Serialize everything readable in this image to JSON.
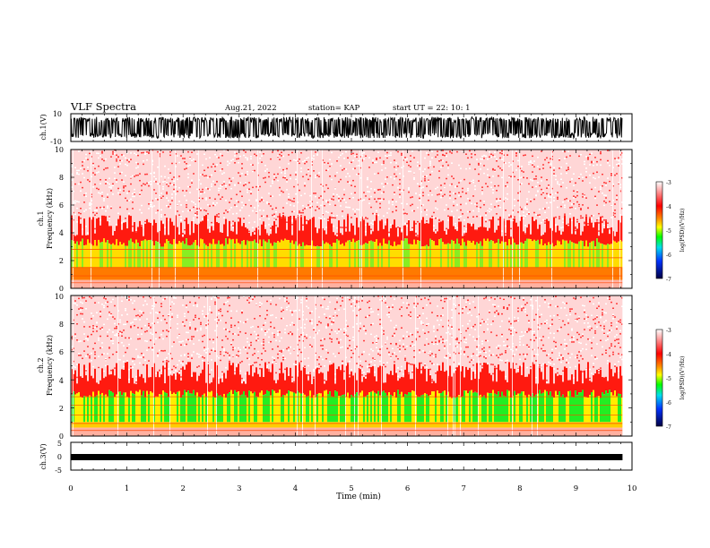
{
  "header": {
    "title": "VLF Spectra",
    "date": "Aug.21, 2022",
    "station": "station= KAP",
    "start": "start UT =  22: 10: 1"
  },
  "chart_data": [
    {
      "type": "line",
      "panel": "ch1-waveform",
      "ylabel": "ch.1(V)",
      "yticks": [
        "10",
        "-10"
      ],
      "ylim": [
        -10,
        10
      ],
      "xlim": [
        0,
        10
      ],
      "trace_color": "#000000",
      "description_only": false,
      "data_extent_min": 9.83
    },
    {
      "type": "heatmap",
      "panel": "ch1-spectrogram",
      "ylabel_1": "ch.1",
      "ylabel_2": "Frequency (kHz)",
      "yticks": [
        "0",
        "2",
        "4",
        "6",
        "8",
        "10"
      ],
      "ylim": [
        0,
        10
      ],
      "xlim": [
        0,
        10
      ],
      "colorbar": {
        "label": "log(PSD)(V²/Hz)",
        "ticks": [
          "-3",
          "-4",
          "-5",
          "-6",
          "-7"
        ],
        "range": [
          -7,
          -3
        ]
      },
      "bands": {
        "noise_top_khz": 4.5,
        "green_low_khz": 1.5,
        "green_high_khz": 3.3
      }
    },
    {
      "type": "heatmap",
      "panel": "ch2-spectrogram",
      "ylabel_1": "ch.2",
      "ylabel_2": "Frequency (kHz)",
      "yticks": [
        "0",
        "2",
        "4",
        "6",
        "8",
        "10"
      ],
      "ylim": [
        0,
        10
      ],
      "xlim": [
        0,
        10
      ],
      "colorbar": {
        "label": "log(PSD)(V²/Hz)",
        "ticks": [
          "-3",
          "-4",
          "-5",
          "-6",
          "-7"
        ],
        "range": [
          -7,
          -3
        ]
      },
      "bands": {
        "noise_top_khz": 4.5,
        "green_low_khz": 1.0,
        "green_high_khz": 3.0
      }
    },
    {
      "type": "line",
      "panel": "ch3-waveform",
      "ylabel": "ch.3(V)",
      "yticks": [
        "5",
        "0",
        "-5"
      ],
      "ylim": [
        -5,
        5
      ],
      "xlim": [
        0,
        10
      ],
      "xlabel": "Time (min)",
      "xticks": [
        "0",
        "1",
        "2",
        "3",
        "4",
        "5",
        "6",
        "7",
        "8",
        "9",
        "10"
      ],
      "trace_level_v": 0
    }
  ]
}
